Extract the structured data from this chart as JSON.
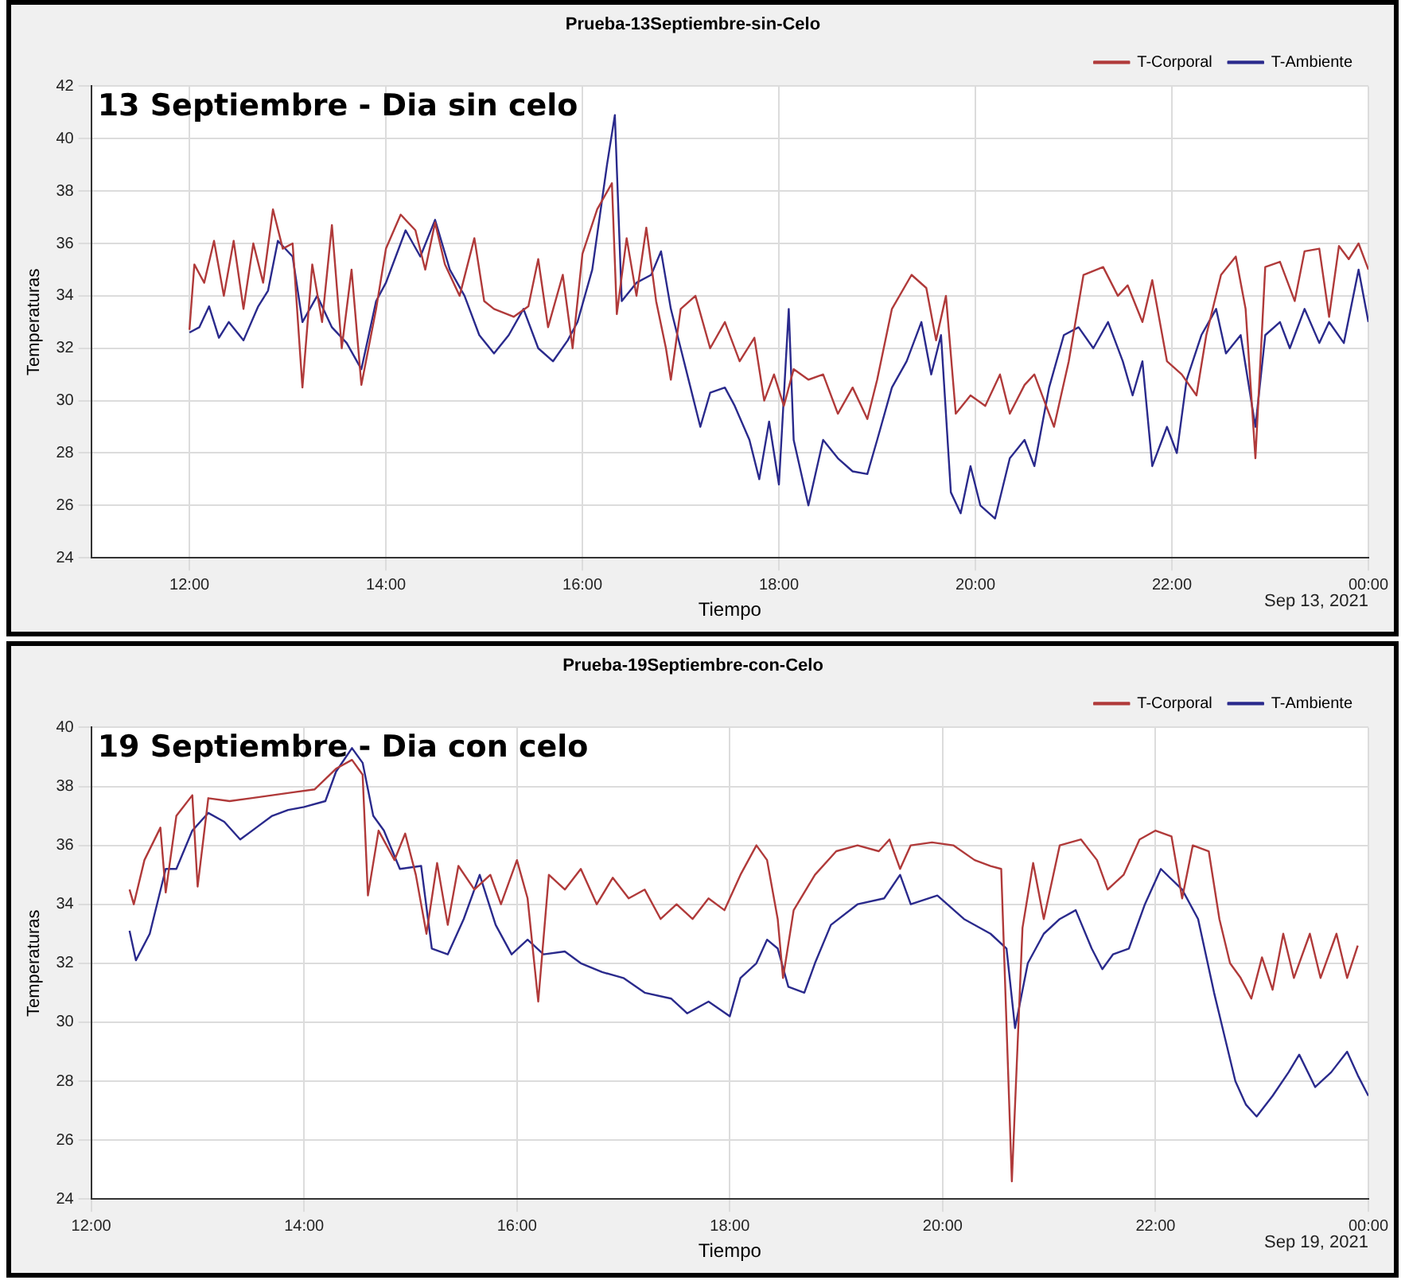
{
  "chart_data": [
    {
      "type": "line",
      "title": "Prueba-13Septiembre-sin-Celo",
      "xlabel": "Tiempo",
      "ylabel": "Temperaturas",
      "annotations": [
        "13 Septiembre - Dia sin celo",
        "Sep 13, 2021"
      ],
      "xlim": [
        11,
        24
      ],
      "xticks": [
        {
          "value": 12,
          "label": "12:00"
        },
        {
          "value": 14,
          "label": "14:00"
        },
        {
          "value": 16,
          "label": "16:00"
        },
        {
          "value": 18,
          "label": "18:00"
        },
        {
          "value": 20,
          "label": "20:00"
        },
        {
          "value": 22,
          "label": "22:00"
        },
        {
          "value": 24,
          "label": "00:00"
        }
      ],
      "ylim": [
        24,
        42
      ],
      "yticks": [
        24,
        26,
        28,
        30,
        32,
        34,
        36,
        38,
        40,
        42
      ],
      "grid": true,
      "legend": "top right",
      "marker": "none",
      "line_style": "solid",
      "series": [
        {
          "name": "T-Corporal",
          "color": "#b03a3a",
          "x": [
            12.0,
            12.05,
            12.15,
            12.25,
            12.35,
            12.45,
            12.55,
            12.65,
            12.75,
            12.85,
            12.95,
            13.05,
            13.15,
            13.25,
            13.35,
            13.45,
            13.55,
            13.65,
            13.75,
            13.9,
            14.0,
            14.15,
            14.3,
            14.4,
            14.5,
            14.6,
            14.75,
            14.9,
            15.0,
            15.1,
            15.3,
            15.45,
            15.55,
            15.65,
            15.8,
            15.9,
            16.0,
            16.15,
            16.3,
            16.35,
            16.45,
            16.55,
            16.65,
            16.75,
            16.85,
            16.9,
            17.0,
            17.15,
            17.3,
            17.45,
            17.6,
            17.75,
            17.85,
            17.95,
            18.05,
            18.15,
            18.3,
            18.45,
            18.6,
            18.75,
            18.9,
            19.0,
            19.15,
            19.35,
            19.5,
            19.6,
            19.7,
            19.8,
            19.95,
            20.1,
            20.25,
            20.35,
            20.5,
            20.6,
            20.7,
            20.8,
            20.95,
            21.1,
            21.3,
            21.45,
            21.55,
            21.7,
            21.8,
            21.95,
            22.1,
            22.25,
            22.35,
            22.5,
            22.65,
            22.75,
            22.85,
            22.95,
            23.1,
            23.25,
            23.35,
            23.5,
            23.6,
            23.7,
            23.8,
            23.9,
            24.0
          ],
          "values": [
            32.7,
            35.2,
            34.5,
            36.1,
            34.0,
            36.1,
            33.5,
            36.0,
            34.5,
            37.3,
            35.8,
            36.0,
            30.5,
            35.2,
            33.0,
            36.7,
            32.0,
            35.0,
            30.6,
            33.5,
            35.8,
            37.1,
            36.5,
            35.0,
            36.8,
            35.2,
            34.0,
            36.2,
            33.8,
            33.5,
            33.2,
            33.6,
            35.4,
            32.8,
            34.8,
            32.0,
            35.6,
            37.3,
            38.3,
            33.3,
            36.2,
            34.0,
            36.6,
            33.8,
            32.0,
            30.8,
            33.5,
            34.0,
            32.0,
            33.0,
            31.5,
            32.4,
            30.0,
            31.0,
            29.8,
            31.2,
            30.8,
            31.0,
            29.5,
            30.5,
            29.3,
            30.8,
            33.5,
            34.8,
            34.3,
            32.3,
            34.0,
            29.5,
            30.2,
            29.8,
            31.0,
            29.5,
            30.6,
            31.0,
            30.0,
            29.0,
            31.5,
            34.8,
            35.1,
            34.0,
            34.4,
            33.0,
            34.6,
            31.5,
            31.0,
            30.2,
            32.5,
            34.8,
            35.5,
            33.5,
            27.8,
            35.1,
            35.3,
            33.8,
            35.7,
            35.8,
            33.2,
            35.9,
            35.4,
            36.0,
            35.0
          ]
        },
        {
          "name": "T-Ambiente",
          "color": "#2a2a8c",
          "x": [
            12.0,
            12.1,
            12.2,
            12.3,
            12.4,
            12.55,
            12.7,
            12.8,
            12.9,
            13.05,
            13.15,
            13.3,
            13.45,
            13.6,
            13.75,
            13.9,
            14.0,
            14.2,
            14.35,
            14.5,
            14.65,
            14.8,
            14.95,
            15.1,
            15.25,
            15.4,
            15.55,
            15.7,
            15.85,
            15.95,
            16.1,
            16.25,
            16.33,
            16.4,
            16.55,
            16.7,
            16.8,
            16.9,
            17.0,
            17.1,
            17.2,
            17.3,
            17.45,
            17.55,
            17.7,
            17.8,
            17.9,
            18.0,
            18.1,
            18.15,
            18.3,
            18.45,
            18.6,
            18.75,
            18.9,
            19.0,
            19.15,
            19.3,
            19.45,
            19.55,
            19.65,
            19.75,
            19.85,
            19.95,
            20.05,
            20.2,
            20.35,
            20.5,
            20.6,
            20.75,
            20.9,
            21.05,
            21.2,
            21.35,
            21.5,
            21.6,
            21.7,
            21.8,
            21.95,
            22.05,
            22.15,
            22.3,
            22.45,
            22.55,
            22.7,
            22.85,
            22.95,
            23.1,
            23.2,
            23.35,
            23.5,
            23.6,
            23.75,
            23.9,
            24.0
          ],
          "values": [
            32.6,
            32.8,
            33.6,
            32.4,
            33.0,
            32.3,
            33.6,
            34.2,
            36.1,
            35.5,
            33.0,
            34.0,
            32.8,
            32.2,
            31.2,
            33.8,
            34.5,
            36.5,
            35.5,
            36.9,
            35.0,
            34.0,
            32.5,
            31.8,
            32.5,
            33.5,
            32.0,
            31.5,
            32.3,
            33.0,
            35.0,
            39.0,
            40.9,
            33.8,
            34.5,
            34.8,
            35.7,
            33.5,
            32.0,
            30.5,
            29.0,
            30.3,
            30.5,
            29.8,
            28.5,
            27.0,
            29.2,
            26.8,
            33.5,
            28.5,
            26.0,
            28.5,
            27.8,
            27.3,
            27.2,
            28.5,
            30.5,
            31.5,
            33.0,
            31.0,
            32.5,
            26.5,
            25.7,
            27.5,
            26.0,
            25.5,
            27.8,
            28.5,
            27.5,
            30.5,
            32.5,
            32.8,
            32.0,
            33.0,
            31.5,
            30.2,
            31.5,
            27.5,
            29.0,
            28.0,
            30.8,
            32.5,
            33.5,
            31.8,
            32.5,
            29.0,
            32.5,
            33.0,
            32.0,
            33.5,
            32.2,
            33.0,
            32.2,
            35.0,
            33.0
          ]
        }
      ]
    },
    {
      "type": "line",
      "title": "Prueba-19Septiembre-con-Celo",
      "xlabel": "Tiempo",
      "ylabel": "Temperaturas",
      "annotations": [
        "19 Septiembre - Dia con celo",
        "Sep 19, 2021"
      ],
      "xlim": [
        12,
        24
      ],
      "xticks": [
        {
          "value": 12,
          "label": "12:00"
        },
        {
          "value": 14,
          "label": "14:00"
        },
        {
          "value": 16,
          "label": "16:00"
        },
        {
          "value": 18,
          "label": "18:00"
        },
        {
          "value": 20,
          "label": "20:00"
        },
        {
          "value": 22,
          "label": "22:00"
        },
        {
          "value": 24,
          "label": "00:00"
        }
      ],
      "ylim": [
        24,
        40
      ],
      "yticks": [
        24,
        26,
        28,
        30,
        32,
        34,
        36,
        38,
        40
      ],
      "grid": true,
      "legend": "top right",
      "marker": "none",
      "line_style": "solid",
      "series": [
        {
          "name": "T-Corporal",
          "color": "#b03a3a",
          "x": [
            12.36,
            12.4,
            12.5,
            12.65,
            12.7,
            12.8,
            12.95,
            13.0,
            13.1,
            13.3,
            13.5,
            13.7,
            13.9,
            14.1,
            14.3,
            14.45,
            14.55,
            14.6,
            14.7,
            14.85,
            14.95,
            15.05,
            15.15,
            15.25,
            15.35,
            15.45,
            15.6,
            15.75,
            15.85,
            16.0,
            16.1,
            16.2,
            16.3,
            16.45,
            16.6,
            16.75,
            16.9,
            17.05,
            17.2,
            17.35,
            17.5,
            17.65,
            17.8,
            17.95,
            18.1,
            18.25,
            18.35,
            18.45,
            18.5,
            18.6,
            18.8,
            19.0,
            19.2,
            19.4,
            19.5,
            19.6,
            19.7,
            19.9,
            20.1,
            20.3,
            20.45,
            20.55,
            20.65,
            20.75,
            20.85,
            20.95,
            21.1,
            21.3,
            21.45,
            21.55,
            21.7,
            21.85,
            22.0,
            22.15,
            22.25,
            22.35,
            22.5,
            22.6,
            22.7,
            22.8,
            22.9,
            23.0,
            23.1,
            23.2,
            23.3,
            23.45,
            23.55,
            23.7,
            23.8,
            23.9
          ],
          "values": [
            34.5,
            34.0,
            35.5,
            36.6,
            34.4,
            37.0,
            37.7,
            34.6,
            37.6,
            37.5,
            37.6,
            37.7,
            37.8,
            37.9,
            38.6,
            38.9,
            38.4,
            34.3,
            36.5,
            35.5,
            36.4,
            35.0,
            33.0,
            35.4,
            33.3,
            35.3,
            34.5,
            35.0,
            34.0,
            35.5,
            34.2,
            30.7,
            35.0,
            34.5,
            35.2,
            34.0,
            34.9,
            34.2,
            34.5,
            33.5,
            34.0,
            33.5,
            34.2,
            33.8,
            35.0,
            36.0,
            35.5,
            33.5,
            31.5,
            33.8,
            35.0,
            35.8,
            36.0,
            35.8,
            36.2,
            35.2,
            36.0,
            36.1,
            36.0,
            35.5,
            35.3,
            35.2,
            24.6,
            33.2,
            35.4,
            33.5,
            36.0,
            36.2,
            35.5,
            34.5,
            35.0,
            36.2,
            36.5,
            36.3,
            34.2,
            36.0,
            35.8,
            33.5,
            32.0,
            31.5,
            30.8,
            32.2,
            31.1,
            33.0,
            31.5,
            33.0,
            31.5,
            33.0,
            31.5,
            32.6
          ]
        },
        {
          "name": "T-Ambiente",
          "color": "#2a2a8c",
          "x": [
            12.36,
            12.42,
            12.55,
            12.7,
            12.8,
            12.95,
            13.1,
            13.25,
            13.4,
            13.55,
            13.7,
            13.85,
            14.0,
            14.2,
            14.3,
            14.45,
            14.55,
            14.65,
            14.75,
            14.9,
            15.1,
            15.2,
            15.35,
            15.5,
            15.65,
            15.8,
            15.95,
            16.1,
            16.25,
            16.45,
            16.6,
            16.8,
            17.0,
            17.2,
            17.45,
            17.6,
            17.8,
            18.0,
            18.1,
            18.25,
            18.35,
            18.45,
            18.55,
            18.7,
            18.8,
            18.95,
            19.2,
            19.45,
            19.6,
            19.7,
            19.95,
            20.2,
            20.45,
            20.6,
            20.68,
            20.8,
            20.95,
            21.1,
            21.25,
            21.4,
            21.5,
            21.6,
            21.75,
            21.9,
            22.05,
            22.25,
            22.4,
            22.55,
            22.65,
            22.75,
            22.85,
            22.95,
            23.1,
            23.25,
            23.35,
            23.5,
            23.65,
            23.8,
            23.9,
            24.0
          ],
          "values": [
            33.1,
            32.1,
            33.0,
            35.2,
            35.2,
            36.5,
            37.1,
            36.8,
            36.2,
            36.6,
            37.0,
            37.2,
            37.3,
            37.5,
            38.5,
            39.3,
            38.8,
            37.0,
            36.5,
            35.2,
            35.3,
            32.5,
            32.3,
            33.5,
            35.0,
            33.3,
            32.3,
            32.8,
            32.3,
            32.4,
            32.0,
            31.7,
            31.5,
            31.0,
            30.8,
            30.3,
            30.7,
            30.2,
            31.5,
            32.0,
            32.8,
            32.5,
            31.2,
            31.0,
            32.0,
            33.3,
            34.0,
            34.2,
            35.0,
            34.0,
            34.3,
            33.5,
            33.0,
            32.5,
            29.8,
            32.0,
            33.0,
            33.5,
            33.8,
            32.5,
            31.8,
            32.3,
            32.5,
            34.0,
            35.2,
            34.5,
            33.5,
            31.0,
            29.5,
            28.0,
            27.2,
            26.8,
            27.5,
            28.3,
            28.9,
            27.8,
            28.3,
            29.0,
            28.2,
            27.5
          ]
        }
      ]
    }
  ]
}
